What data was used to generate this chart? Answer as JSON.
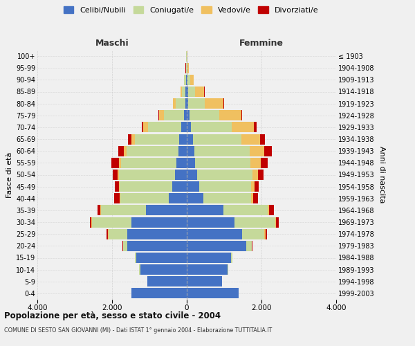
{
  "age_groups": [
    "0-4",
    "5-9",
    "10-14",
    "15-19",
    "20-24",
    "25-29",
    "30-34",
    "35-39",
    "40-44",
    "45-49",
    "50-54",
    "55-59",
    "60-64",
    "65-69",
    "70-74",
    "75-79",
    "80-84",
    "85-89",
    "90-94",
    "95-99",
    "100+"
  ],
  "birth_years": [
    "1999-2003",
    "1994-1998",
    "1989-1993",
    "1984-1988",
    "1979-1983",
    "1974-1978",
    "1969-1973",
    "1964-1968",
    "1959-1963",
    "1954-1958",
    "1949-1953",
    "1944-1948",
    "1939-1943",
    "1934-1938",
    "1929-1933",
    "1924-1928",
    "1919-1923",
    "1914-1918",
    "1909-1913",
    "1904-1908",
    "≤ 1903"
  ],
  "males": {
    "celibi": [
      1480,
      1050,
      1250,
      1350,
      1600,
      1600,
      1480,
      1100,
      480,
      390,
      320,
      270,
      220,
      195,
      145,
      75,
      45,
      28,
      18,
      8,
      5
    ],
    "coniugati": [
      5,
      5,
      20,
      30,
      100,
      500,
      1060,
      1200,
      1300,
      1400,
      1490,
      1490,
      1390,
      1190,
      890,
      540,
      245,
      95,
      48,
      14,
      5
    ],
    "vedovi": [
      0,
      0,
      0,
      0,
      10,
      20,
      10,
      10,
      20,
      30,
      40,
      60,
      80,
      100,
      130,
      130,
      78,
      38,
      14,
      5,
      2
    ],
    "divorziati": [
      0,
      0,
      0,
      5,
      10,
      30,
      50,
      80,
      150,
      100,
      130,
      200,
      150,
      80,
      30,
      20,
      10,
      5,
      3,
      1,
      0
    ]
  },
  "females": {
    "nubili": [
      1380,
      940,
      1090,
      1190,
      1590,
      1490,
      1280,
      980,
      440,
      340,
      270,
      220,
      195,
      175,
      115,
      75,
      45,
      28,
      18,
      8,
      4
    ],
    "coniugate": [
      5,
      5,
      20,
      30,
      145,
      590,
      1090,
      1190,
      1290,
      1390,
      1490,
      1490,
      1490,
      1290,
      1090,
      790,
      440,
      195,
      75,
      18,
      4
    ],
    "vedove": [
      0,
      0,
      0,
      0,
      10,
      30,
      20,
      30,
      50,
      80,
      150,
      280,
      390,
      490,
      590,
      590,
      490,
      245,
      95,
      28,
      5
    ],
    "divorziate": [
      0,
      0,
      0,
      5,
      10,
      30,
      70,
      130,
      130,
      120,
      150,
      180,
      200,
      130,
      80,
      30,
      20,
      10,
      5,
      2,
      0
    ]
  },
  "colors": {
    "celibi_nubili": "#4472C4",
    "coniugati": "#C5D99A",
    "vedovi": "#F0C060",
    "divorziati": "#C00000"
  },
  "title": "Popolazione per età, sesso e stato civile - 2004",
  "subtitle": "COMUNE DI SESTO SAN GIOVANNI (MI) - Dati ISTAT 1° gennaio 2004 - Elaborazione TUTTITALIA.IT",
  "xlabel_left": "Maschi",
  "xlabel_right": "Femmine",
  "ylabel_left": "Fasce di età",
  "ylabel_right": "Anni di nascita",
  "xlim": 4000,
  "background_color": "#f0f0f0",
  "grid_color": "#cccccc"
}
